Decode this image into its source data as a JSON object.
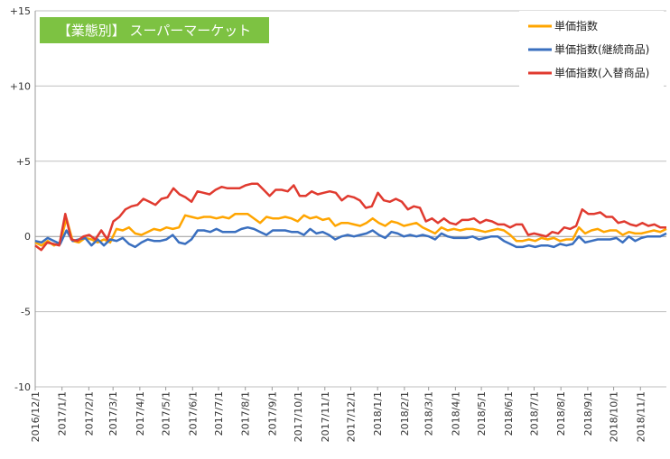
{
  "chart_data": {
    "type": "line",
    "title": "【業態別】 スーパーマーケット",
    "xlabel": "",
    "ylabel": "",
    "ylim": [
      -10,
      15
    ],
    "y_ticks": [
      {
        "value": 15,
        "label": "+15"
      },
      {
        "value": 10,
        "label": "+10"
      },
      {
        "value": 5,
        "label": "+5"
      },
      {
        "value": 0,
        "label": "0"
      },
      {
        "value": -5,
        "label": "-5"
      },
      {
        "value": -10,
        "label": "-10"
      }
    ],
    "x_tick_labels": [
      "2016/12/1",
      "2017/1/1",
      "2017/2/1",
      "2017/3/1",
      "2017/4/1",
      "2017/5/1",
      "2017/6/1",
      "2017/7/1",
      "2017/8/1",
      "2017/9/1",
      "2017/10/1",
      "2017/11/1",
      "2017/12/1",
      "2018/1/1",
      "2018/2/1",
      "2018/3/1",
      "2018/4/1",
      "2018/5/1",
      "2018/6/1",
      "2018/7/1",
      "2018/8/1",
      "2018/9/1",
      "2018/10/1",
      "2018/11/1"
    ],
    "x_range": [
      "2016/12/1",
      "2018/12/1"
    ],
    "grid": "horizontal",
    "legend_position": "top-right",
    "series": [
      {
        "name": "単価指数",
        "color": "#FFA500",
        "values": [
          -0.4,
          -0.6,
          -0.3,
          -0.6,
          -0.4,
          1.2,
          -0.3,
          -0.4,
          -0.1,
          -0.2,
          -0.4,
          -0.2,
          -0.4,
          0.5,
          0.4,
          0.6,
          0.2,
          0.1,
          0.3,
          0.5,
          0.4,
          0.6,
          0.5,
          0.6,
          1.4,
          1.3,
          1.2,
          1.3,
          1.3,
          1.2,
          1.3,
          1.2,
          1.5,
          1.5,
          1.5,
          1.2,
          0.9,
          1.3,
          1.2,
          1.2,
          1.3,
          1.2,
          1.0,
          1.4,
          1.2,
          1.3,
          1.1,
          1.2,
          0.7,
          0.9,
          0.9,
          0.8,
          0.7,
          0.9,
          1.2,
          0.9,
          0.7,
          1.0,
          0.9,
          0.7,
          0.8,
          0.9,
          0.6,
          0.4,
          0.2,
          0.6,
          0.4,
          0.5,
          0.4,
          0.5,
          0.5,
          0.4,
          0.3,
          0.4,
          0.5,
          0.4,
          0.1,
          -0.3,
          -0.3,
          -0.2,
          -0.3,
          -0.1,
          -0.2,
          -0.1,
          -0.3,
          -0.2,
          -0.2,
          0.6,
          0.2,
          0.4,
          0.5,
          0.3,
          0.4,
          0.4,
          0.1,
          0.3,
          0.2,
          0.2,
          0.3,
          0.4,
          0.3,
          0.5
        ]
      },
      {
        "name": "単価指数(継続商品)",
        "color": "#3A6FBF",
        "values": [
          -0.3,
          -0.4,
          -0.1,
          -0.3,
          -0.5,
          0.4,
          -0.3,
          -0.2,
          -0.1,
          -0.6,
          -0.2,
          -0.6,
          -0.2,
          -0.3,
          -0.1,
          -0.5,
          -0.7,
          -0.4,
          -0.2,
          -0.3,
          -0.3,
          -0.2,
          0.1,
          -0.4,
          -0.5,
          -0.2,
          0.4,
          0.4,
          0.3,
          0.5,
          0.3,
          0.3,
          0.3,
          0.5,
          0.6,
          0.5,
          0.3,
          0.1,
          0.4,
          0.4,
          0.4,
          0.3,
          0.3,
          0.1,
          0.5,
          0.2,
          0.3,
          0.1,
          -0.2,
          0.0,
          0.1,
          0.0,
          0.1,
          0.2,
          0.4,
          0.1,
          -0.1,
          0.3,
          0.2,
          0.0,
          0.1,
          0.0,
          0.1,
          0.0,
          -0.2,
          0.2,
          0.0,
          -0.1,
          -0.1,
          -0.1,
          0.0,
          -0.2,
          -0.1,
          0.0,
          0.0,
          -0.3,
          -0.5,
          -0.7,
          -0.7,
          -0.6,
          -0.7,
          -0.6,
          -0.6,
          -0.7,
          -0.5,
          -0.6,
          -0.5,
          0.0,
          -0.4,
          -0.3,
          -0.2,
          -0.2,
          -0.2,
          -0.1,
          -0.4,
          0.0,
          -0.3,
          -0.1,
          0.0,
          0.0,
          0.0,
          0.2
        ]
      },
      {
        "name": "単価指数(入替商品)",
        "color": "#E03A2F",
        "values": [
          -0.6,
          -0.9,
          -0.4,
          -0.5,
          -0.6,
          1.5,
          -0.2,
          -0.3,
          0.0,
          0.1,
          -0.2,
          0.4,
          -0.2,
          1.0,
          1.3,
          1.8,
          2.0,
          2.1,
          2.5,
          2.3,
          2.1,
          2.5,
          2.6,
          3.2,
          2.8,
          2.6,
          2.3,
          3.0,
          2.9,
          2.8,
          3.1,
          3.3,
          3.2,
          3.2,
          3.2,
          3.4,
          3.5,
          3.5,
          3.1,
          2.7,
          3.1,
          3.1,
          3.0,
          3.4,
          2.7,
          2.7,
          3.0,
          2.8,
          2.9,
          3.0,
          2.9,
          2.4,
          2.7,
          2.6,
          2.4,
          1.9,
          2.0,
          2.9,
          2.4,
          2.3,
          2.5,
          2.3,
          1.8,
          2.0,
          1.9,
          1.0,
          1.2,
          0.9,
          1.2,
          0.9,
          0.8,
          1.1,
          1.1,
          1.2,
          0.9,
          1.1,
          1.0,
          0.8,
          0.8,
          0.6,
          0.8,
          0.8,
          0.1,
          0.2,
          0.1,
          0.0,
          0.3,
          0.2,
          0.6,
          0.5,
          0.7,
          1.8,
          1.5,
          1.5,
          1.6,
          1.3,
          1.3,
          0.9,
          1.0,
          0.8,
          0.7,
          0.9,
          0.7,
          0.8,
          0.6,
          0.6
        ]
      }
    ]
  }
}
